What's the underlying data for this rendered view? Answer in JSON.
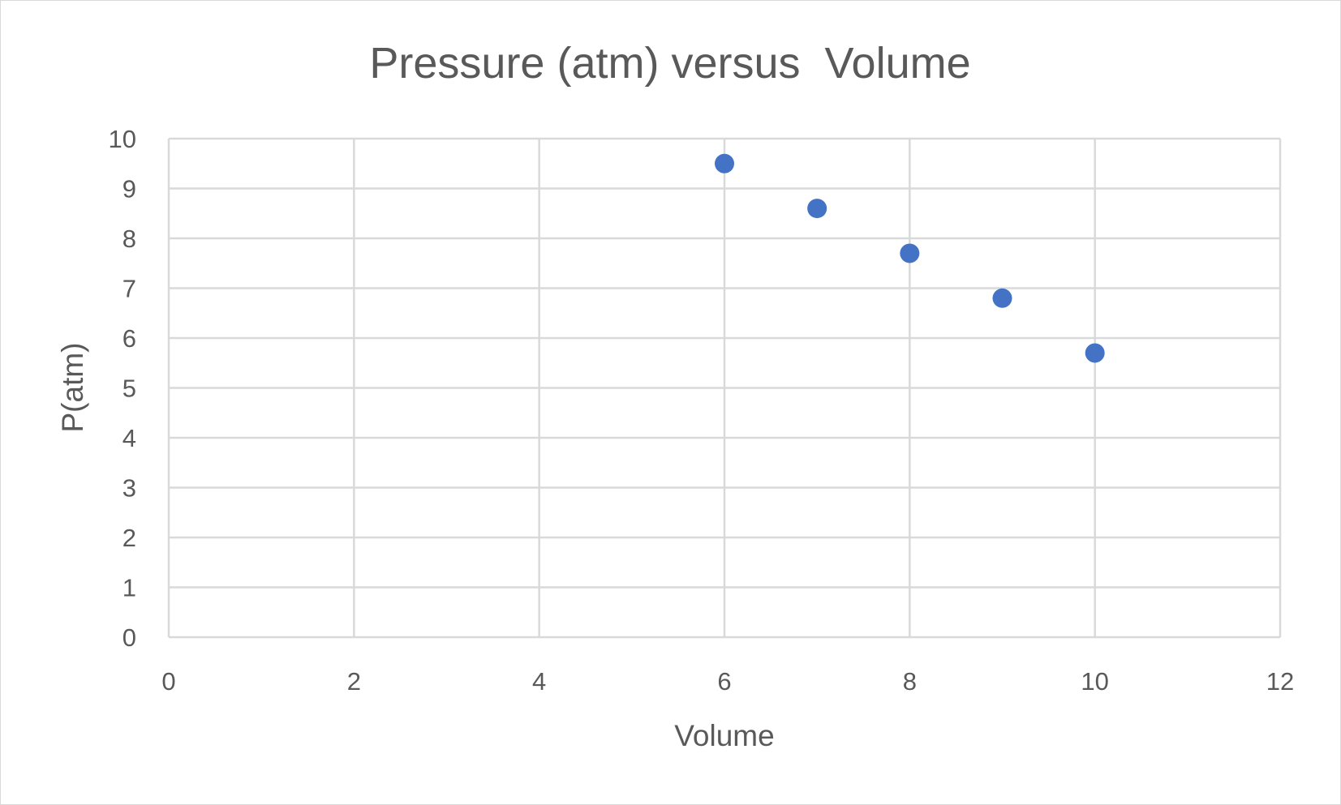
{
  "chart_data": {
    "type": "scatter",
    "title": "Pressure (atm) versus  Volume",
    "xlabel": "Volume",
    "ylabel": "P(atm)",
    "xlim": [
      0,
      12
    ],
    "ylim": [
      0,
      10
    ],
    "xticks": [
      0,
      2,
      4,
      6,
      8,
      10,
      12
    ],
    "yticks": [
      0,
      1,
      2,
      3,
      4,
      5,
      6,
      7,
      8,
      9,
      10
    ],
    "grid": true,
    "legend": "none",
    "marker_color": "#4472C4",
    "series": [
      {
        "points": [
          {
            "x": 6,
            "y": 9.5
          },
          {
            "x": 7,
            "y": 8.6
          },
          {
            "x": 8,
            "y": 7.7
          },
          {
            "x": 9,
            "y": 6.8
          },
          {
            "x": 10,
            "y": 5.7
          }
        ]
      }
    ]
  }
}
